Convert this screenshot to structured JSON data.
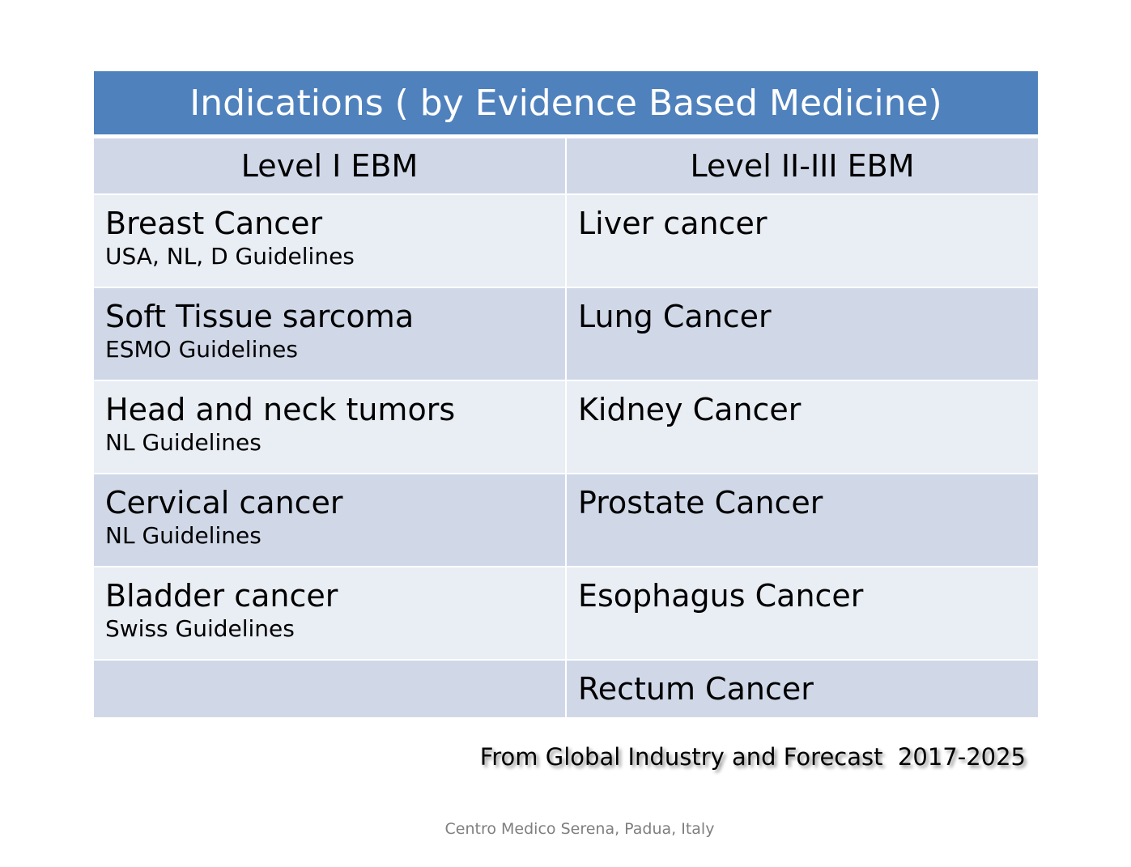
{
  "table": {
    "title": "Indications ( by Evidence Based Medicine)",
    "headers": [
      "Level  I EBM",
      "Level II-III EBM"
    ],
    "rows": [
      {
        "left_main": "Breast Cancer",
        "left_sub": "USA, NL, D Guidelines",
        "right_main": "Liver cancer"
      },
      {
        "left_main": "Soft Tissue sarcoma",
        "left_sub": "ESMO Guidelines",
        "right_main": "Lung Cancer"
      },
      {
        "left_main": "Head and neck tumors",
        "left_sub": "NL  Guidelines",
        "right_main": "Kidney Cancer"
      },
      {
        "left_main": "Cervical cancer",
        "left_sub": "NL Guidelines",
        "right_main": "Prostate Cancer"
      },
      {
        "left_main": "Bladder cancer",
        "left_sub": "Swiss Guidelines",
        "right_main": "Esophagus Cancer"
      },
      {
        "left_main": "",
        "left_sub": "",
        "right_main": "Rectum Cancer"
      }
    ]
  },
  "source_note": "From Global Industry and Forecast  2017-2025",
  "footer": "Centro Medico Serena, Padua, Italy",
  "colors": {
    "title_bg": "#4f81bd",
    "row_dark": "#d0d8e8",
    "row_light": "#e9edf4"
  }
}
